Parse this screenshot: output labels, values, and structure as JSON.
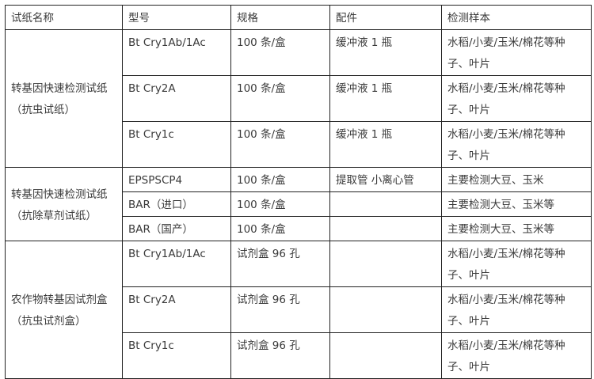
{
  "headers": [
    "试纸名称",
    "型号",
    "规格",
    "配件",
    "检测样本"
  ],
  "groups": [
    {
      "name": "转基因快速检测试纸（抗虫试纸）",
      "rows": [
        {
          "model": "Bt Cry1Ab/1Ac",
          "spec": "100 条/盒",
          "accessory": "缓冲液 1 瓶",
          "sample": "水稻/小麦/玉米/棉花等种子、叶片"
        },
        {
          "model": "Bt Cry2A",
          "spec": "100 条/盒",
          "accessory": "缓冲液 1 瓶",
          "sample": "水稻/小麦/玉米/棉花等种子、叶片"
        },
        {
          "model": "Bt Cry1c",
          "spec": "100 条/盒",
          "accessory": "缓冲液 1 瓶",
          "sample": "水稻/小麦/玉米/棉花等种子、叶片"
        }
      ]
    },
    {
      "name": "转基因快速检测试纸（抗除草剂试纸）",
      "rows": [
        {
          "model": "EPSPSCP4",
          "spec": "100 条/盒",
          "accessory": "提取管 小离心管",
          "sample": "主要检测大豆、玉米"
        },
        {
          "model": "BAR（进口）",
          "spec": "100 条/盒",
          "accessory": "",
          "sample": "主要检测大豆、玉米等"
        },
        {
          "model": "BAR（国产）",
          "spec": "100 条/盒",
          "accessory": "",
          "sample": "主要检测大豆、玉米等"
        }
      ]
    },
    {
      "name": "农作物转基因试剂盒（抗虫试剂盒）",
      "rows": [
        {
          "model": "Bt Cry1Ab/1Ac",
          "spec": "试剂盒 96 孔",
          "accessory": "",
          "sample": "水稻/小麦/玉米/棉花等种子、叶片"
        },
        {
          "model": "Bt Cry2A",
          "spec": "试剂盒 96 孔",
          "accessory": "",
          "sample": "水稻/小麦/玉米/棉花等种子、叶片"
        },
        {
          "model": "Bt Cry1c",
          "spec": "试剂盒 96 孔",
          "accessory": "",
          "sample": "水稻/小麦/玉米/棉花等种子、叶片"
        }
      ]
    }
  ]
}
